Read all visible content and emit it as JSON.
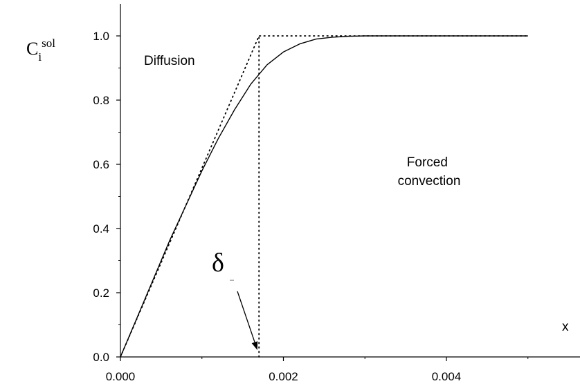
{
  "chart_data": {
    "type": "line",
    "xlabel": "x",
    "ylabel": {
      "base": "C",
      "subscript": "i",
      "superscript": "sol"
    },
    "xlim": [
      0,
      0.005
    ],
    "ylim": [
      0,
      1.05
    ],
    "x_ticks": [
      "0.000",
      "0.002",
      "0.004"
    ],
    "x_tick_values": [
      0,
      0.002,
      0.004
    ],
    "y_ticks": [
      "0.0",
      "0.2",
      "0.4",
      "0.6",
      "0.8",
      "1.0"
    ],
    "y_tick_values": [
      0,
      0.2,
      0.4,
      0.6,
      0.8,
      1.0
    ],
    "grid": false,
    "series": [
      {
        "style": "solid",
        "x": [
          0,
          0.0002,
          0.0004,
          0.0006,
          0.0008,
          0.001,
          0.0012,
          0.0014,
          0.0016,
          0.0018,
          0.002,
          0.0022,
          0.0024,
          0.0026,
          0.0028,
          0.003,
          0.0035,
          0.004,
          0.0045,
          0.005
        ],
        "y": [
          0,
          0.12,
          0.24,
          0.36,
          0.47,
          0.58,
          0.68,
          0.77,
          0.85,
          0.91,
          0.95,
          0.975,
          0.99,
          0.996,
          0.999,
          1.0,
          1.0,
          1.0,
          1.0,
          1.0
        ]
      },
      {
        "style": "dotted",
        "x": [
          0,
          0.0017,
          0.0017,
          0.005
        ],
        "y": [
          0,
          1.0,
          1.0,
          1.0
        ]
      },
      {
        "style": "dotted",
        "x": [
          0.0017,
          0.0017
        ],
        "y": [
          0,
          1.0
        ]
      }
    ],
    "annotations": [
      {
        "text": "Diffusion"
      },
      {
        "text": "Forced\nconvection"
      },
      {
        "text": "δ"
      }
    ],
    "arrow_target": {
      "x": 0.00168,
      "y": 0
    }
  }
}
